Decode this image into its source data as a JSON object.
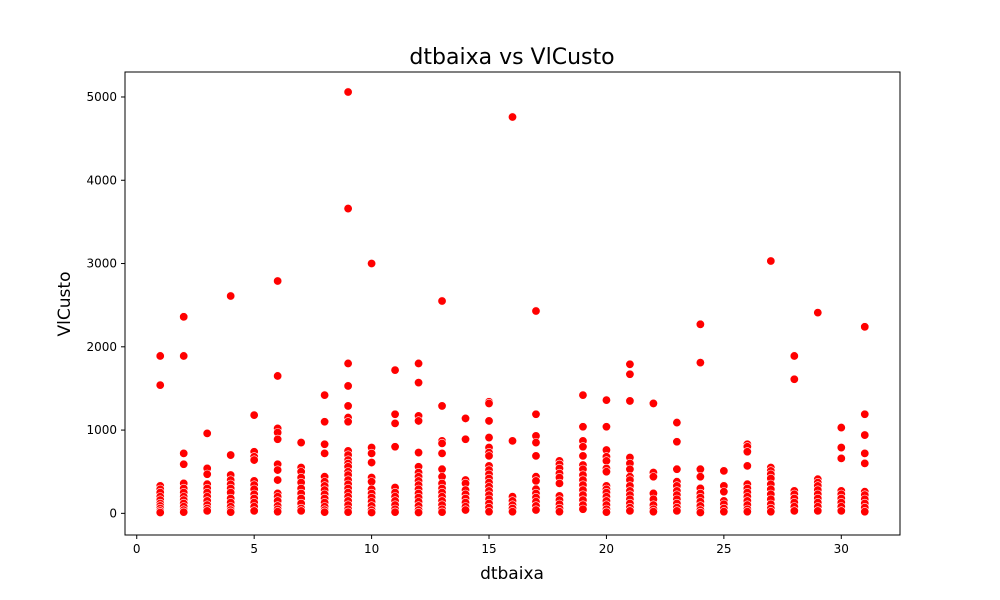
{
  "chart_data": {
    "type": "scatter",
    "title": "dtbaixa vs VlCusto",
    "xlabel": "dtbaixa",
    "ylabel": "VlCusto",
    "xlim": [
      -0.5,
      32.5
    ],
    "ylim": [
      -260,
      5300
    ],
    "xticks": [
      0,
      5,
      10,
      15,
      20,
      25,
      30
    ],
    "yticks": [
      0,
      1000,
      2000,
      3000,
      4000,
      5000
    ],
    "grid": false,
    "legend": "none",
    "color": "#ff0000",
    "edge_color": "#ffffff",
    "points": [
      [
        1,
        1890
      ],
      [
        1,
        1540
      ],
      [
        1,
        330
      ],
      [
        1,
        290
      ],
      [
        1,
        250
      ],
      [
        1,
        200
      ],
      [
        1,
        160
      ],
      [
        1,
        120
      ],
      [
        1,
        90
      ],
      [
        1,
        60
      ],
      [
        1,
        30
      ],
      [
        1,
        10
      ],
      [
        2,
        2360
      ],
      [
        2,
        1890
      ],
      [
        2,
        720
      ],
      [
        2,
        590
      ],
      [
        2,
        360
      ],
      [
        2,
        300
      ],
      [
        2,
        250
      ],
      [
        2,
        200
      ],
      [
        2,
        160
      ],
      [
        2,
        120
      ],
      [
        2,
        80
      ],
      [
        2,
        40
      ],
      [
        2,
        15
      ],
      [
        3,
        960
      ],
      [
        3,
        540
      ],
      [
        3,
        470
      ],
      [
        3,
        350
      ],
      [
        3,
        300
      ],
      [
        3,
        250
      ],
      [
        3,
        200
      ],
      [
        3,
        150
      ],
      [
        3,
        100
      ],
      [
        3,
        60
      ],
      [
        3,
        30
      ],
      [
        4,
        2610
      ],
      [
        4,
        700
      ],
      [
        4,
        460
      ],
      [
        4,
        400
      ],
      [
        4,
        350
      ],
      [
        4,
        300
      ],
      [
        4,
        250
      ],
      [
        4,
        180
      ],
      [
        4,
        130
      ],
      [
        4,
        80
      ],
      [
        4,
        40
      ],
      [
        4,
        15
      ],
      [
        5,
        1180
      ],
      [
        5,
        740
      ],
      [
        5,
        680
      ],
      [
        5,
        640
      ],
      [
        5,
        390
      ],
      [
        5,
        340
      ],
      [
        5,
        290
      ],
      [
        5,
        230
      ],
      [
        5,
        180
      ],
      [
        5,
        130
      ],
      [
        5,
        80
      ],
      [
        5,
        30
      ],
      [
        6,
        2790
      ],
      [
        6,
        1650
      ],
      [
        6,
        1020
      ],
      [
        6,
        970
      ],
      [
        6,
        890
      ],
      [
        6,
        590
      ],
      [
        6,
        520
      ],
      [
        6,
        400
      ],
      [
        6,
        240
      ],
      [
        6,
        200
      ],
      [
        6,
        150
      ],
      [
        6,
        90
      ],
      [
        6,
        50
      ],
      [
        6,
        20
      ],
      [
        7,
        850
      ],
      [
        7,
        550
      ],
      [
        7,
        500
      ],
      [
        7,
        430
      ],
      [
        7,
        370
      ],
      [
        7,
        300
      ],
      [
        7,
        240
      ],
      [
        7,
        180
      ],
      [
        7,
        120
      ],
      [
        7,
        60
      ],
      [
        7,
        30
      ],
      [
        8,
        1420
      ],
      [
        8,
        1100
      ],
      [
        8,
        830
      ],
      [
        8,
        720
      ],
      [
        8,
        440
      ],
      [
        8,
        380
      ],
      [
        8,
        330
      ],
      [
        8,
        280
      ],
      [
        8,
        230
      ],
      [
        8,
        180
      ],
      [
        8,
        130
      ],
      [
        8,
        80
      ],
      [
        8,
        40
      ],
      [
        8,
        15
      ],
      [
        9,
        5060
      ],
      [
        9,
        3660
      ],
      [
        9,
        1800
      ],
      [
        9,
        1530
      ],
      [
        9,
        1290
      ],
      [
        9,
        1150
      ],
      [
        9,
        1100
      ],
      [
        9,
        750
      ],
      [
        9,
        700
      ],
      [
        9,
        640
      ],
      [
        9,
        600
      ],
      [
        9,
        560
      ],
      [
        9,
        500
      ],
      [
        9,
        460
      ],
      [
        9,
        400
      ],
      [
        9,
        350
      ],
      [
        9,
        300
      ],
      [
        9,
        250
      ],
      [
        9,
        200
      ],
      [
        9,
        150
      ],
      [
        9,
        100
      ],
      [
        9,
        50
      ],
      [
        9,
        15
      ],
      [
        10,
        3000
      ],
      [
        10,
        790
      ],
      [
        10,
        720
      ],
      [
        10,
        610
      ],
      [
        10,
        430
      ],
      [
        10,
        380
      ],
      [
        10,
        290
      ],
      [
        10,
        240
      ],
      [
        10,
        190
      ],
      [
        10,
        140
      ],
      [
        10,
        90
      ],
      [
        10,
        40
      ],
      [
        10,
        10
      ],
      [
        11,
        1720
      ],
      [
        11,
        1190
      ],
      [
        11,
        1080
      ],
      [
        11,
        800
      ],
      [
        11,
        310
      ],
      [
        11,
        250
      ],
      [
        11,
        200
      ],
      [
        11,
        150
      ],
      [
        11,
        100
      ],
      [
        11,
        50
      ],
      [
        11,
        15
      ],
      [
        12,
        1800
      ],
      [
        12,
        1570
      ],
      [
        12,
        1170
      ],
      [
        12,
        1110
      ],
      [
        12,
        730
      ],
      [
        12,
        560
      ],
      [
        12,
        490
      ],
      [
        12,
        440
      ],
      [
        12,
        390
      ],
      [
        12,
        340
      ],
      [
        12,
        290
      ],
      [
        12,
        240
      ],
      [
        12,
        190
      ],
      [
        12,
        140
      ],
      [
        12,
        90
      ],
      [
        12,
        40
      ],
      [
        12,
        10
      ],
      [
        13,
        2550
      ],
      [
        13,
        1290
      ],
      [
        13,
        870
      ],
      [
        13,
        840
      ],
      [
        13,
        720
      ],
      [
        13,
        530
      ],
      [
        13,
        440
      ],
      [
        13,
        360
      ],
      [
        13,
        300
      ],
      [
        13,
        250
      ],
      [
        13,
        200
      ],
      [
        13,
        150
      ],
      [
        13,
        100
      ],
      [
        13,
        50
      ],
      [
        13,
        15
      ],
      [
        14,
        1140
      ],
      [
        14,
        890
      ],
      [
        14,
        400
      ],
      [
        14,
        360
      ],
      [
        14,
        280
      ],
      [
        14,
        230
      ],
      [
        14,
        180
      ],
      [
        14,
        130
      ],
      [
        14,
        80
      ],
      [
        14,
        40
      ],
      [
        15,
        1340
      ],
      [
        15,
        1320
      ],
      [
        15,
        1110
      ],
      [
        15,
        910
      ],
      [
        15,
        790
      ],
      [
        15,
        730
      ],
      [
        15,
        690
      ],
      [
        15,
        570
      ],
      [
        15,
        520
      ],
      [
        15,
        470
      ],
      [
        15,
        420
      ],
      [
        15,
        370
      ],
      [
        15,
        320
      ],
      [
        15,
        270
      ],
      [
        15,
        220
      ],
      [
        15,
        170
      ],
      [
        15,
        120
      ],
      [
        15,
        70
      ],
      [
        15,
        20
      ],
      [
        16,
        4760
      ],
      [
        16,
        870
      ],
      [
        16,
        200
      ],
      [
        16,
        150
      ],
      [
        16,
        100
      ],
      [
        16,
        60
      ],
      [
        16,
        20
      ],
      [
        17,
        2430
      ],
      [
        17,
        1190
      ],
      [
        17,
        930
      ],
      [
        17,
        850
      ],
      [
        17,
        690
      ],
      [
        17,
        440
      ],
      [
        17,
        390
      ],
      [
        17,
        290
      ],
      [
        17,
        240
      ],
      [
        17,
        190
      ],
      [
        17,
        140
      ],
      [
        17,
        90
      ],
      [
        17,
        40
      ],
      [
        18,
        630
      ],
      [
        18,
        590
      ],
      [
        18,
        540
      ],
      [
        18,
        480
      ],
      [
        18,
        430
      ],
      [
        18,
        360
      ],
      [
        18,
        210
      ],
      [
        18,
        160
      ],
      [
        18,
        110
      ],
      [
        18,
        60
      ],
      [
        18,
        20
      ],
      [
        19,
        1420
      ],
      [
        19,
        1040
      ],
      [
        19,
        870
      ],
      [
        19,
        800
      ],
      [
        19,
        690
      ],
      [
        19,
        580
      ],
      [
        19,
        530
      ],
      [
        19,
        460
      ],
      [
        19,
        400
      ],
      [
        19,
        340
      ],
      [
        19,
        280
      ],
      [
        19,
        220
      ],
      [
        19,
        160
      ],
      [
        19,
        100
      ],
      [
        19,
        50
      ],
      [
        20,
        1360
      ],
      [
        20,
        1040
      ],
      [
        20,
        760
      ],
      [
        20,
        680
      ],
      [
        20,
        630
      ],
      [
        20,
        540
      ],
      [
        20,
        500
      ],
      [
        20,
        330
      ],
      [
        20,
        290
      ],
      [
        20,
        250
      ],
      [
        20,
        200
      ],
      [
        20,
        150
      ],
      [
        20,
        100
      ],
      [
        20,
        50
      ],
      [
        20,
        15
      ],
      [
        21,
        1790
      ],
      [
        21,
        1670
      ],
      [
        21,
        1350
      ],
      [
        21,
        670
      ],
      [
        21,
        600
      ],
      [
        21,
        530
      ],
      [
        21,
        440
      ],
      [
        21,
        400
      ],
      [
        21,
        330
      ],
      [
        21,
        270
      ],
      [
        21,
        220
      ],
      [
        21,
        170
      ],
      [
        21,
        120
      ],
      [
        21,
        70
      ],
      [
        21,
        30
      ],
      [
        22,
        1320
      ],
      [
        22,
        490
      ],
      [
        22,
        440
      ],
      [
        22,
        240
      ],
      [
        22,
        170
      ],
      [
        22,
        100
      ],
      [
        22,
        50
      ],
      [
        22,
        20
      ],
      [
        23,
        1090
      ],
      [
        23,
        860
      ],
      [
        23,
        530
      ],
      [
        23,
        380
      ],
      [
        23,
        330
      ],
      [
        23,
        270
      ],
      [
        23,
        220
      ],
      [
        23,
        170
      ],
      [
        23,
        120
      ],
      [
        23,
        70
      ],
      [
        23,
        30
      ],
      [
        24,
        2270
      ],
      [
        24,
        1810
      ],
      [
        24,
        530
      ],
      [
        24,
        440
      ],
      [
        24,
        300
      ],
      [
        24,
        240
      ],
      [
        24,
        190
      ],
      [
        24,
        140
      ],
      [
        24,
        90
      ],
      [
        24,
        40
      ],
      [
        24,
        10
      ],
      [
        25,
        510
      ],
      [
        25,
        330
      ],
      [
        25,
        260
      ],
      [
        25,
        150
      ],
      [
        25,
        110
      ],
      [
        25,
        60
      ],
      [
        25,
        20
      ],
      [
        26,
        830
      ],
      [
        26,
        800
      ],
      [
        26,
        740
      ],
      [
        26,
        570
      ],
      [
        26,
        350
      ],
      [
        26,
        300
      ],
      [
        26,
        250
      ],
      [
        26,
        200
      ],
      [
        26,
        150
      ],
      [
        26,
        100
      ],
      [
        26,
        50
      ],
      [
        26,
        20
      ],
      [
        27,
        3030
      ],
      [
        27,
        550
      ],
      [
        27,
        510
      ],
      [
        27,
        470
      ],
      [
        27,
        420
      ],
      [
        27,
        350
      ],
      [
        27,
        290
      ],
      [
        27,
        230
      ],
      [
        27,
        170
      ],
      [
        27,
        110
      ],
      [
        27,
        60
      ],
      [
        27,
        20
      ],
      [
        28,
        1890
      ],
      [
        28,
        1610
      ],
      [
        28,
        270
      ],
      [
        28,
        230
      ],
      [
        28,
        180
      ],
      [
        28,
        130
      ],
      [
        28,
        80
      ],
      [
        28,
        30
      ],
      [
        29,
        2410
      ],
      [
        29,
        410
      ],
      [
        29,
        370
      ],
      [
        29,
        330
      ],
      [
        29,
        280
      ],
      [
        29,
        230
      ],
      [
        29,
        180
      ],
      [
        29,
        130
      ],
      [
        29,
        80
      ],
      [
        29,
        30
      ],
      [
        30,
        1030
      ],
      [
        30,
        790
      ],
      [
        30,
        660
      ],
      [
        30,
        270
      ],
      [
        30,
        230
      ],
      [
        30,
        180
      ],
      [
        30,
        130
      ],
      [
        30,
        80
      ],
      [
        30,
        30
      ],
      [
        31,
        2240
      ],
      [
        31,
        1190
      ],
      [
        31,
        940
      ],
      [
        31,
        720
      ],
      [
        31,
        600
      ],
      [
        31,
        260
      ],
      [
        31,
        220
      ],
      [
        31,
        170
      ],
      [
        31,
        120
      ],
      [
        31,
        70
      ],
      [
        31,
        20
      ]
    ]
  }
}
